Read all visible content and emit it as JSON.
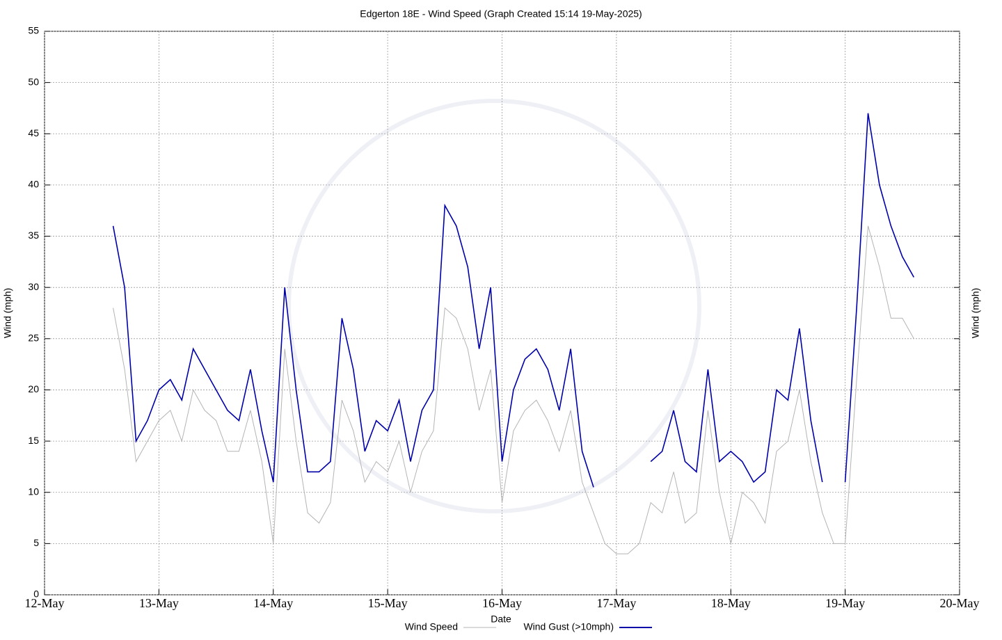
{
  "chart_data": {
    "type": "line",
    "title": "Edgerton 18E - Wind Speed (Graph Created 15:14 19-May-2025)",
    "xlabel": "Date",
    "ylabel": "Wind (mph)",
    "y2label": "Wind (mph)",
    "x": [
      0.6,
      0.7,
      0.8,
      0.9,
      1.0,
      1.1,
      1.2,
      1.3,
      1.4,
      1.5,
      1.6,
      1.7,
      1.8,
      1.9,
      2.0,
      2.1,
      2.2,
      2.3,
      2.4,
      2.5,
      2.6,
      2.7,
      2.8,
      2.9,
      3.0,
      3.1,
      3.2,
      3.3,
      3.4,
      3.5,
      3.6,
      3.7,
      3.8,
      3.9,
      4.0,
      4.1,
      4.2,
      4.3,
      4.4,
      4.5,
      4.6,
      4.7,
      4.8,
      4.9,
      5.0,
      5.1,
      5.2,
      5.3,
      5.4,
      5.5,
      5.6,
      5.7,
      5.8,
      5.9,
      6.0,
      6.1,
      6.2,
      6.3,
      6.4,
      6.5,
      6.6,
      6.7,
      6.8,
      6.9,
      7.0,
      7.1,
      7.2,
      7.3,
      7.4,
      7.5,
      7.6
    ],
    "series": [
      {
        "name": "Wind Speed",
        "color": "#b4b4b4",
        "values": [
          28,
          22,
          13,
          15,
          17,
          18,
          15,
          20,
          18,
          17,
          14,
          14,
          18,
          13,
          5,
          24,
          15,
          8,
          7,
          9,
          19,
          16,
          11,
          13,
          12,
          15,
          10,
          14,
          16,
          28,
          27,
          24,
          18,
          22,
          9,
          16,
          18,
          19,
          17,
          14,
          18,
          11,
          8,
          5,
          4,
          4,
          5,
          9,
          8,
          12,
          7,
          8,
          18,
          10,
          5,
          10,
          9,
          7,
          14,
          15,
          20,
          13,
          8,
          5,
          5,
          21,
          36,
          32,
          27,
          27,
          25
        ]
      },
      {
        "name": "Wind Gust (>10mph)",
        "color": "#0000a8",
        "values": [
          36,
          30,
          15,
          17,
          20,
          21,
          19,
          24,
          22,
          20,
          18,
          17,
          22,
          16,
          11,
          30,
          20,
          12,
          12,
          13,
          27,
          22,
          14,
          17,
          16,
          19,
          13,
          18,
          20,
          38,
          36,
          32,
          24,
          30,
          13,
          20,
          23,
          24,
          22,
          18,
          24,
          14,
          10.5,
          null,
          null,
          null,
          null,
          13,
          14,
          18,
          13,
          12,
          22,
          13,
          14,
          13,
          11,
          12,
          20,
          19,
          26,
          17,
          11,
          null,
          11,
          28,
          47,
          40,
          36,
          33,
          31
        ]
      }
    ],
    "xlim": [
      0,
      8
    ],
    "xticks": [
      {
        "value": 0,
        "label": "12-May"
      },
      {
        "value": 1,
        "label": "13-May"
      },
      {
        "value": 2,
        "label": "14-May"
      },
      {
        "value": 3,
        "label": "15-May"
      },
      {
        "value": 4,
        "label": "16-May"
      },
      {
        "value": 5,
        "label": "17-May"
      },
      {
        "value": 6,
        "label": "18-May"
      },
      {
        "value": 7,
        "label": "19-May"
      },
      {
        "value": 8,
        "label": "20-May"
      }
    ],
    "ylim": [
      0,
      55
    ],
    "yticks": [
      0,
      5,
      10,
      15,
      20,
      25,
      30,
      35,
      40,
      45,
      50,
      55
    ],
    "grid": true
  }
}
